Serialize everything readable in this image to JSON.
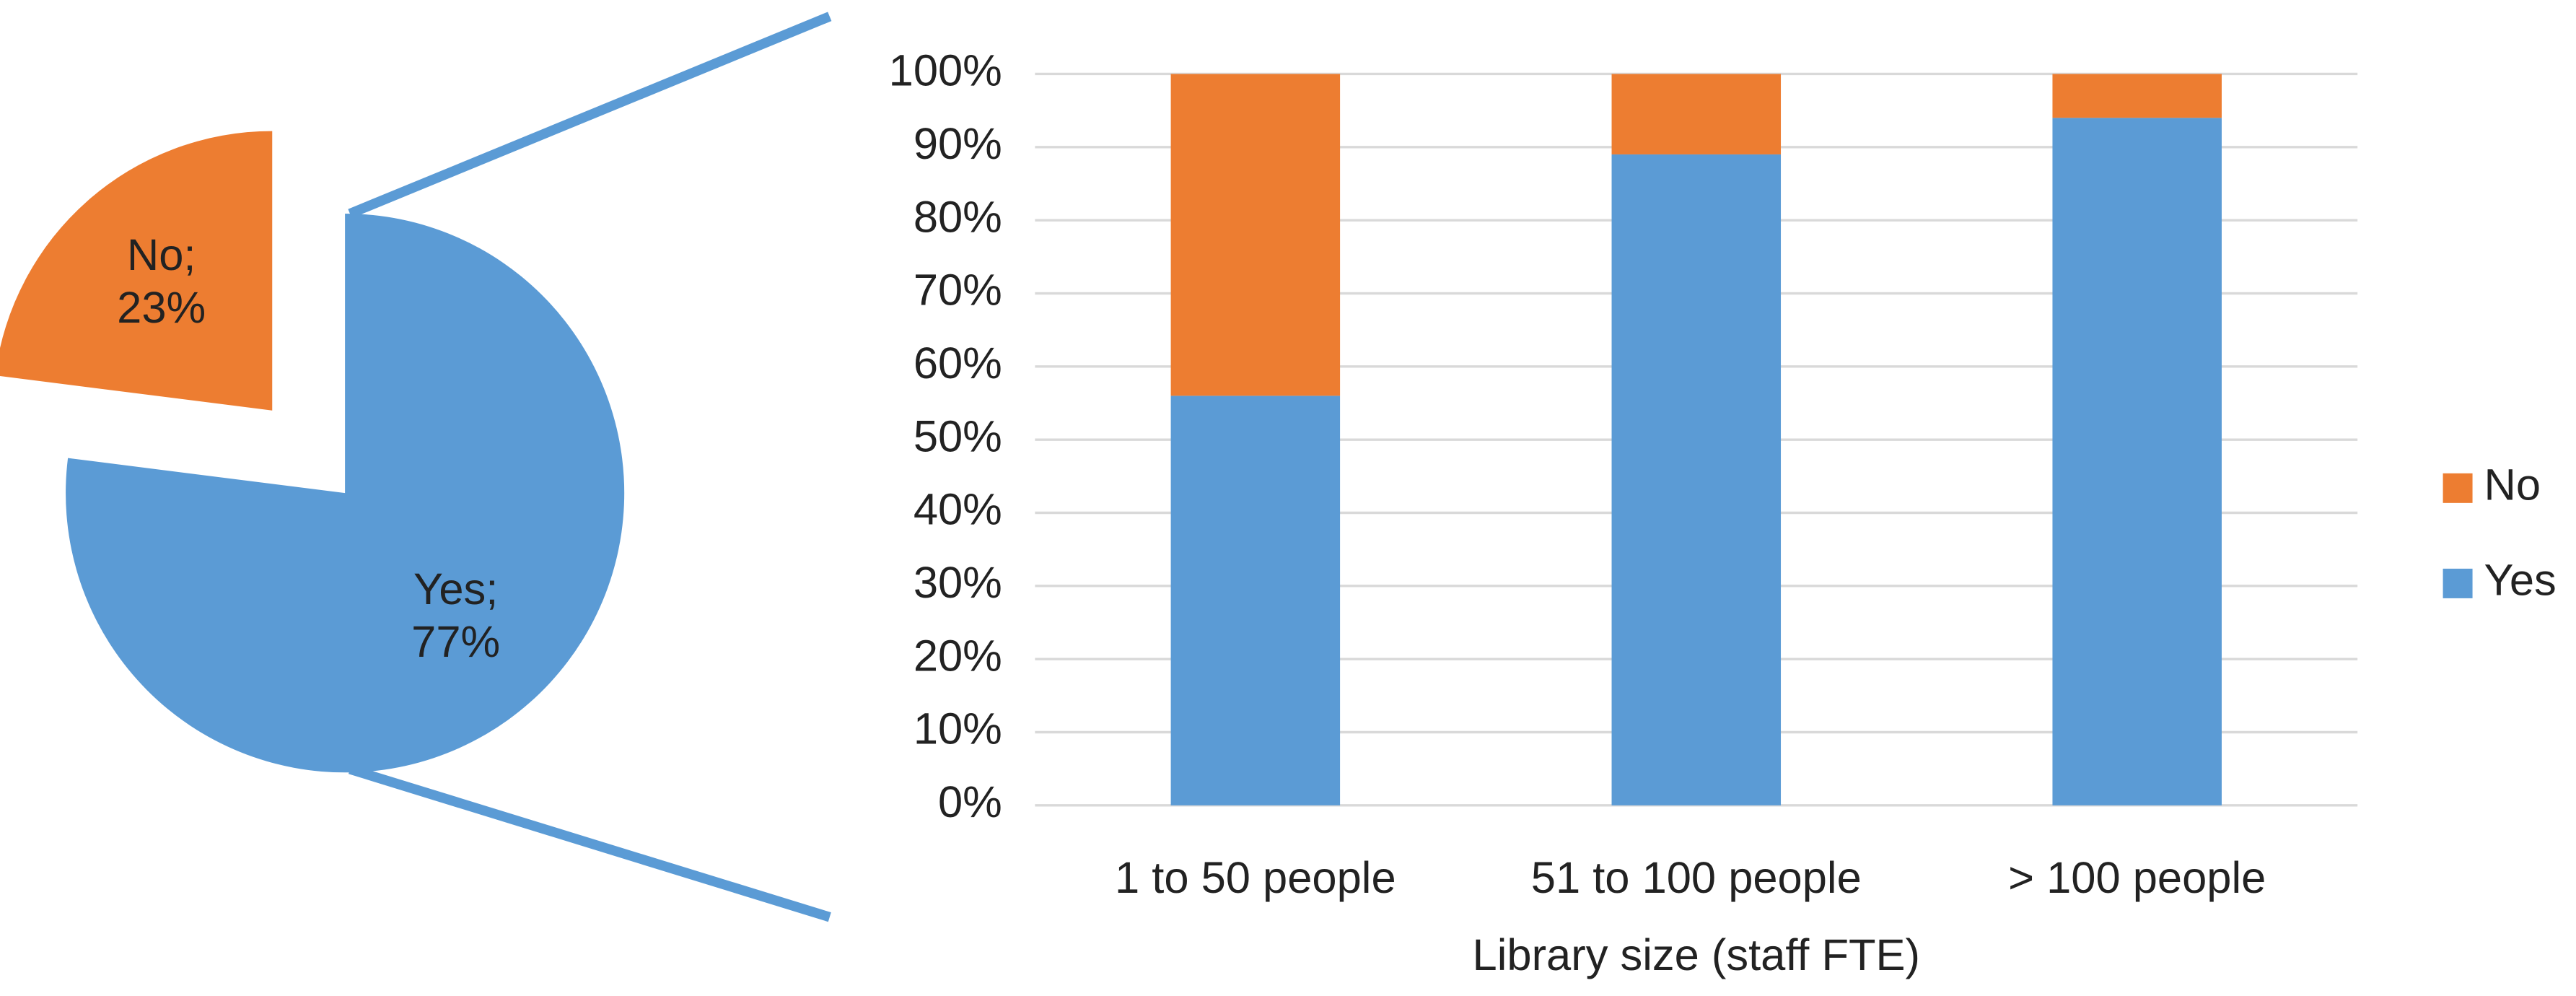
{
  "chart_data": [
    {
      "type": "pie",
      "categories": [
        "Yes",
        "No"
      ],
      "values": [
        77,
        23
      ],
      "value_labels": [
        "Yes; 77%",
        "No; 23%"
      ],
      "colors": [
        "#5b9bd5",
        "#ed7d31"
      ]
    },
    {
      "type": "stacked_bar",
      "x_label": "Library size (staff FTE)",
      "categories": [
        "1 to 50 people",
        "51 to 100 people",
        "> 100 people"
      ],
      "series": [
        {
          "name": "Yes",
          "color": "#5b9bd5",
          "values": [
            56,
            89,
            94
          ]
        },
        {
          "name": "No",
          "color": "#ed7d31",
          "values": [
            44,
            11,
            6
          ]
        }
      ],
      "ylim": [
        0,
        100
      ],
      "yticks": [
        {
          "value": 0,
          "label": "0%"
        },
        {
          "value": 10,
          "label": "10%"
        },
        {
          "value": 20,
          "label": "20%"
        },
        {
          "value": 30,
          "label": "30%"
        },
        {
          "value": 40,
          "label": "40%"
        },
        {
          "value": 50,
          "label": "50%"
        },
        {
          "value": 60,
          "label": "60%"
        },
        {
          "value": 70,
          "label": "70%"
        },
        {
          "value": 80,
          "label": "80%"
        },
        {
          "value": 90,
          "label": "90%"
        },
        {
          "value": 100,
          "label": "100%"
        }
      ],
      "grid": true,
      "legend": "right"
    }
  ]
}
